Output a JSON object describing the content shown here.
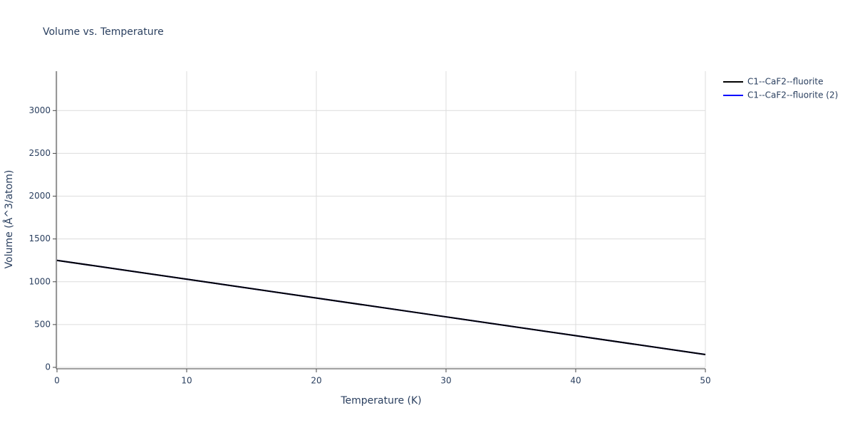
{
  "chart_data": {
    "type": "line",
    "title": "Volume vs. Temperature",
    "x_label": "Temperature (K)",
    "y_label": "Volume (Å^3/atom)",
    "x": [
      0,
      10,
      20,
      30,
      40,
      50
    ],
    "series": [
      {
        "name": "C1--CaF2--fluorite",
        "color": "#000000",
        "values": [
          1250,
          1030,
          810,
          590,
          370,
          150
        ]
      },
      {
        "name": "C1--CaF2--fluorite (2)",
        "color": "#0000ff",
        "values": [
          1250,
          1030,
          810,
          590,
          370,
          150
        ]
      }
    ],
    "xlim": [
      0,
      50
    ],
    "xticks": [
      0,
      10,
      20,
      30,
      40,
      50
    ],
    "ylim": [
      0,
      3460
    ],
    "yticks": [
      0,
      500,
      1000,
      1500,
      2000,
      2500,
      3000
    ],
    "grid": true,
    "legend": "top-right"
  }
}
